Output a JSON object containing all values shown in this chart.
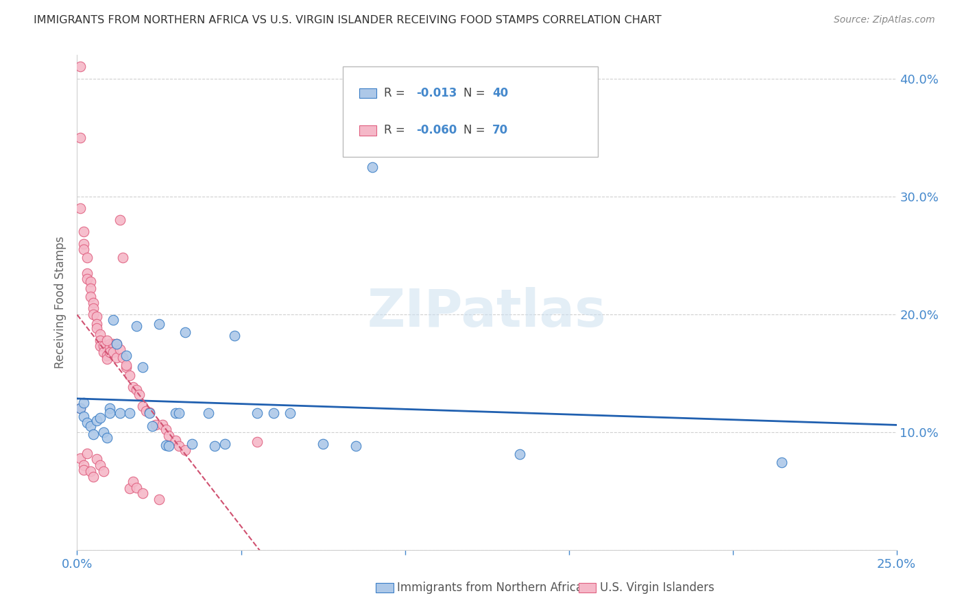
{
  "title": "IMMIGRANTS FROM NORTHERN AFRICA VS U.S. VIRGIN ISLANDER RECEIVING FOOD STAMPS CORRELATION CHART",
  "source": "Source: ZipAtlas.com",
  "ylabel": "Receiving Food Stamps",
  "xlim": [
    0.0,
    0.25
  ],
  "ylim": [
    0.0,
    0.42
  ],
  "xtick_positions": [
    0.0,
    0.05,
    0.1,
    0.15,
    0.2,
    0.25
  ],
  "xtick_labels": [
    "0.0%",
    "",
    "",
    "",
    "",
    "25.0%"
  ],
  "ytick_positions": [
    0.0,
    0.1,
    0.2,
    0.3,
    0.4
  ],
  "ytick_labels_right": [
    "",
    "10.0%",
    "20.0%",
    "30.0%",
    "40.0%"
  ],
  "legend_blue_r": "-0.013",
  "legend_blue_n": "40",
  "legend_pink_r": "-0.060",
  "legend_pink_n": "70",
  "legend_blue_label": "Immigrants from Northern Africa",
  "legend_pink_label": "U.S. Virgin Islanders",
  "watermark": "ZIPatlas",
  "blue_scatter_x": [
    0.001,
    0.002,
    0.002,
    0.003,
    0.004,
    0.005,
    0.006,
    0.007,
    0.008,
    0.009,
    0.01,
    0.01,
    0.011,
    0.012,
    0.013,
    0.015,
    0.016,
    0.018,
    0.02,
    0.022,
    0.023,
    0.025,
    0.027,
    0.028,
    0.03,
    0.031,
    0.033,
    0.035,
    0.04,
    0.042,
    0.045,
    0.048,
    0.055,
    0.06,
    0.065,
    0.075,
    0.085,
    0.09,
    0.135,
    0.215
  ],
  "blue_scatter_y": [
    0.12,
    0.113,
    0.125,
    0.108,
    0.105,
    0.098,
    0.11,
    0.112,
    0.1,
    0.095,
    0.12,
    0.116,
    0.195,
    0.175,
    0.116,
    0.165,
    0.116,
    0.19,
    0.155,
    0.116,
    0.105,
    0.192,
    0.089,
    0.088,
    0.116,
    0.116,
    0.185,
    0.09,
    0.116,
    0.088,
    0.09,
    0.182,
    0.116,
    0.116,
    0.116,
    0.09,
    0.088,
    0.325,
    0.081,
    0.074
  ],
  "pink_scatter_x": [
    0.001,
    0.001,
    0.001,
    0.002,
    0.002,
    0.002,
    0.003,
    0.003,
    0.003,
    0.004,
    0.004,
    0.004,
    0.005,
    0.005,
    0.005,
    0.006,
    0.006,
    0.006,
    0.007,
    0.007,
    0.007,
    0.008,
    0.008,
    0.009,
    0.009,
    0.01,
    0.01,
    0.011,
    0.011,
    0.012,
    0.013,
    0.014,
    0.015,
    0.016,
    0.017,
    0.018,
    0.019,
    0.02,
    0.021,
    0.022,
    0.024,
    0.026,
    0.027,
    0.028,
    0.03,
    0.031,
    0.033,
    0.055,
    0.001,
    0.001,
    0.002,
    0.002,
    0.003,
    0.004,
    0.005,
    0.006,
    0.007,
    0.008,
    0.009,
    0.01,
    0.011,
    0.012,
    0.013,
    0.014,
    0.015,
    0.016,
    0.017,
    0.018,
    0.02,
    0.025
  ],
  "pink_scatter_y": [
    0.41,
    0.35,
    0.29,
    0.27,
    0.26,
    0.255,
    0.248,
    0.235,
    0.23,
    0.228,
    0.222,
    0.215,
    0.21,
    0.205,
    0.2,
    0.198,
    0.192,
    0.188,
    0.183,
    0.178,
    0.173,
    0.173,
    0.168,
    0.165,
    0.162,
    0.175,
    0.172,
    0.172,
    0.175,
    0.175,
    0.28,
    0.248,
    0.155,
    0.148,
    0.138,
    0.136,
    0.132,
    0.122,
    0.118,
    0.117,
    0.106,
    0.106,
    0.102,
    0.097,
    0.093,
    0.088,
    0.085,
    0.092,
    0.12,
    0.078,
    0.072,
    0.068,
    0.082,
    0.067,
    0.062,
    0.077,
    0.072,
    0.067,
    0.178,
    0.168,
    0.168,
    0.163,
    0.17,
    0.163,
    0.157,
    0.052,
    0.058,
    0.053,
    0.048,
    0.043
  ],
  "blue_color": "#adc8e8",
  "blue_edge_color": "#3a7ec6",
  "pink_color": "#f5b8c8",
  "pink_edge_color": "#e06080",
  "blue_line_color": "#2060b0",
  "pink_line_color": "#d05070",
  "grid_color": "#d0d0d0",
  "tick_color": "#4488cc",
  "title_color": "#333333",
  "source_color": "#888888",
  "background_color": "#ffffff"
}
